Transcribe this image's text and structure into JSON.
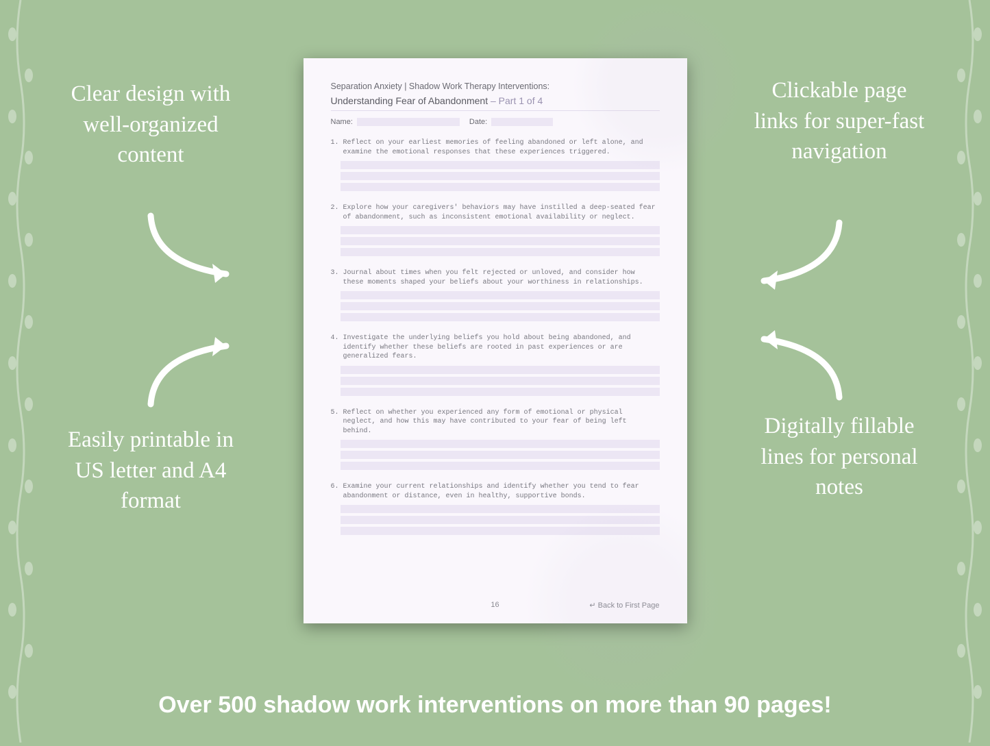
{
  "background_color": "#a5c29a",
  "vine_color": "#ffffff",
  "callouts": {
    "top_left": "Clear design with well-organized content",
    "top_right": "Clickable page links for super-fast navigation",
    "bottom_left": "Easily printable in US letter and A4 format",
    "bottom_right": "Digitally fillable lines for personal notes"
  },
  "banner": "Over 500 shadow work interventions on more than 90 pages!",
  "document": {
    "title_line1": "Separation Anxiety | Shadow Work Therapy Interventions:",
    "title_line2_main": "Understanding Fear of Abandonment  ",
    "title_line2_part": "– Part 1 of 4",
    "name_label": "Name:",
    "date_label": "Date:",
    "page_number": "16",
    "back_link": "↵ Back to First Page",
    "line_fill_color": "#ece6f4",
    "title_color": "#6a6a72",
    "text_color": "#787880",
    "page_bg": "#faf7fc",
    "lines_per_prompt": 3,
    "prompts": [
      {
        "n": "1.",
        "text": "Reflect on your earliest memories of feeling abandoned or left alone, and examine the emotional responses that these experiences triggered."
      },
      {
        "n": "2.",
        "text": "Explore how your caregivers' behaviors may have instilled a deep-seated fear of abandonment, such as inconsistent emotional availability or neglect."
      },
      {
        "n": "3.",
        "text": "Journal about times when you felt rejected or unloved, and consider how these moments shaped your beliefs about your worthiness in relationships."
      },
      {
        "n": "4.",
        "text": "Investigate the underlying beliefs you hold about being abandoned, and identify whether these beliefs are rooted in past experiences or are generalized fears."
      },
      {
        "n": "5.",
        "text": "Reflect on whether you experienced any form of emotional or physical neglect, and how this may have contributed to your fear of being left behind."
      },
      {
        "n": "6.",
        "text": "Examine your current relationships and identify whether you tend to fear abandonment or distance, even in healthy, supportive bonds."
      }
    ]
  },
  "arrow_color": "#ffffff"
}
